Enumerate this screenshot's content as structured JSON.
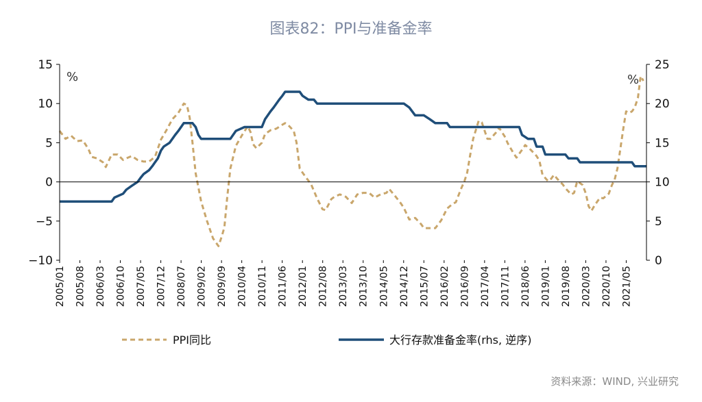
{
  "chart_data": {
    "type": "line",
    "title": "图表82：PPI与准备金率",
    "source": "资料来源：WIND, 兴业研究",
    "left_axis": {
      "unit": "%",
      "range": [
        -10,
        15
      ],
      "ticks": [
        "15",
        "10",
        "5",
        "0",
        "−5",
        "−10"
      ],
      "tick_values": [
        15,
        10,
        5,
        0,
        -5,
        -10
      ]
    },
    "right_axis": {
      "unit": "%",
      "range": [
        0,
        25
      ],
      "ticks": [
        "25",
        "20",
        "15",
        "10",
        "5",
        "0"
      ],
      "tick_values": [
        25,
        20,
        15,
        10,
        5,
        0
      ],
      "reversed": false
    },
    "x_ticks": [
      "2005/01",
      "2005/08",
      "2006/03",
      "2006/10",
      "2007/05",
      "2007/12",
      "2008/07",
      "2009/02",
      "2009/09",
      "2010/04",
      "2010/11",
      "2011/06",
      "2012/01",
      "2012/08",
      "2013/03",
      "2013/10",
      "2014/05",
      "2014/12",
      "2015/07",
      "2016/02",
      "2016/09",
      "2017/04",
      "2017/11",
      "2018/06",
      "2019/01",
      "2019/08",
      "2020/03",
      "2020/10",
      "2021/05"
    ],
    "x_range": [
      2005.0,
      2021.917
    ],
    "legend": [
      "PPI同比",
      "大行存款准备金率(rhs, 逆序)"
    ],
    "series": [
      {
        "name": "PPI同比",
        "axis": "left",
        "color": "#c9a66b",
        "style": "dashed",
        "points": [
          [
            2005.0,
            6.5
          ],
          [
            2005.17,
            5.5
          ],
          [
            2005.33,
            5.9
          ],
          [
            2005.5,
            5.2
          ],
          [
            2005.67,
            5.3
          ],
          [
            2005.83,
            4.2
          ],
          [
            2005.92,
            3.2
          ],
          [
            2006.08,
            3.0
          ],
          [
            2006.25,
            2.5
          ],
          [
            2006.33,
            1.9
          ],
          [
            2006.5,
            3.5
          ],
          [
            2006.67,
            3.5
          ],
          [
            2006.83,
            2.8
          ],
          [
            2006.92,
            3.0
          ],
          [
            2007.08,
            3.3
          ],
          [
            2007.25,
            2.8
          ],
          [
            2007.42,
            2.6
          ],
          [
            2007.58,
            2.6
          ],
          [
            2007.75,
            3.2
          ],
          [
            2007.92,
            5.4
          ],
          [
            2008.08,
            6.6
          ],
          [
            2008.25,
            8.0
          ],
          [
            2008.42,
            8.8
          ],
          [
            2008.58,
            10.0
          ],
          [
            2008.67,
            9.8
          ],
          [
            2008.75,
            8.2
          ],
          [
            2008.83,
            5.0
          ],
          [
            2008.92,
            1.1
          ],
          [
            2009.08,
            -2.5
          ],
          [
            2009.25,
            -5.0
          ],
          [
            2009.42,
            -7.2
          ],
          [
            2009.58,
            -8.2
          ],
          [
            2009.67,
            -7.0
          ],
          [
            2009.75,
            -5.8
          ],
          [
            2009.83,
            -2.0
          ],
          [
            2009.92,
            1.7
          ],
          [
            2010.08,
            4.6
          ],
          [
            2010.25,
            5.9
          ],
          [
            2010.42,
            7.1
          ],
          [
            2010.5,
            6.4
          ],
          [
            2010.58,
            4.8
          ],
          [
            2010.67,
            4.3
          ],
          [
            2010.83,
            5.0
          ],
          [
            2010.92,
            6.1
          ],
          [
            2011.08,
            6.6
          ],
          [
            2011.25,
            6.8
          ],
          [
            2011.42,
            7.3
          ],
          [
            2011.5,
            7.5
          ],
          [
            2011.58,
            7.3
          ],
          [
            2011.75,
            6.5
          ],
          [
            2011.83,
            5.0
          ],
          [
            2011.92,
            1.7
          ],
          [
            2012.08,
            0.7
          ],
          [
            2012.25,
            -0.3
          ],
          [
            2012.42,
            -2.1
          ],
          [
            2012.58,
            -3.5
          ],
          [
            2012.67,
            -3.6
          ],
          [
            2012.83,
            -2.2
          ],
          [
            2012.92,
            -1.9
          ],
          [
            2013.08,
            -1.6
          ],
          [
            2013.25,
            -1.9
          ],
          [
            2013.42,
            -2.7
          ],
          [
            2013.58,
            -1.6
          ],
          [
            2013.75,
            -1.4
          ],
          [
            2013.92,
            -1.4
          ],
          [
            2014.08,
            -2.0
          ],
          [
            2014.25,
            -1.6
          ],
          [
            2014.42,
            -1.4
          ],
          [
            2014.5,
            -0.9
          ],
          [
            2014.67,
            -1.8
          ],
          [
            2014.83,
            -2.7
          ],
          [
            2014.92,
            -3.3
          ],
          [
            2015.08,
            -4.8
          ],
          [
            2015.25,
            -4.6
          ],
          [
            2015.42,
            -5.4
          ],
          [
            2015.5,
            -5.9
          ],
          [
            2015.67,
            -5.9
          ],
          [
            2015.83,
            -5.9
          ],
          [
            2016.0,
            -4.9
          ],
          [
            2016.17,
            -3.4
          ],
          [
            2016.33,
            -2.8
          ],
          [
            2016.42,
            -2.6
          ],
          [
            2016.58,
            -0.8
          ],
          [
            2016.67,
            0.1
          ],
          [
            2016.75,
            1.2
          ],
          [
            2016.83,
            3.3
          ],
          [
            2016.92,
            5.5
          ],
          [
            2017.08,
            7.8
          ],
          [
            2017.17,
            7.6
          ],
          [
            2017.33,
            5.5
          ],
          [
            2017.42,
            5.5
          ],
          [
            2017.58,
            6.3
          ],
          [
            2017.67,
            6.9
          ],
          [
            2017.83,
            5.8
          ],
          [
            2017.92,
            4.9
          ],
          [
            2018.08,
            3.7
          ],
          [
            2018.17,
            3.1
          ],
          [
            2018.33,
            4.1
          ],
          [
            2018.42,
            4.7
          ],
          [
            2018.58,
            4.1
          ],
          [
            2018.75,
            3.3
          ],
          [
            2018.83,
            2.7
          ],
          [
            2018.92,
            0.9
          ],
          [
            2019.08,
            0.1
          ],
          [
            2019.17,
            0.4
          ],
          [
            2019.25,
            0.9
          ],
          [
            2019.42,
            0.0
          ],
          [
            2019.5,
            -0.3
          ],
          [
            2019.58,
            -0.8
          ],
          [
            2019.75,
            -1.6
          ],
          [
            2019.83,
            -1.4
          ],
          [
            2019.92,
            0.1
          ],
          [
            2020.08,
            -0.4
          ],
          [
            2020.17,
            -1.5
          ],
          [
            2020.25,
            -3.1
          ],
          [
            2020.33,
            -3.7
          ],
          [
            2020.42,
            -3.0
          ],
          [
            2020.58,
            -2.0
          ],
          [
            2020.67,
            -2.1
          ],
          [
            2020.83,
            -1.5
          ],
          [
            2020.92,
            -0.4
          ],
          [
            2021.0,
            0.3
          ],
          [
            2021.08,
            1.7
          ],
          [
            2021.17,
            4.4
          ],
          [
            2021.25,
            6.8
          ],
          [
            2021.33,
            9.0
          ],
          [
            2021.42,
            8.8
          ],
          [
            2021.5,
            9.0
          ],
          [
            2021.58,
            9.5
          ],
          [
            2021.67,
            10.7
          ],
          [
            2021.75,
            13.5
          ],
          [
            2021.83,
            12.9
          ]
        ]
      },
      {
        "name": "大行存款准备金率(rhs, 逆序)",
        "axis": "right",
        "color": "#1f4e79",
        "style": "solid",
        "points": [
          [
            2005.0,
            7.5
          ],
          [
            2006.5,
            7.5
          ],
          [
            2006.58,
            8.0
          ],
          [
            2006.83,
            8.5
          ],
          [
            2006.92,
            9.0
          ],
          [
            2007.08,
            9.5
          ],
          [
            2007.25,
            10.0
          ],
          [
            2007.33,
            10.5
          ],
          [
            2007.42,
            11.0
          ],
          [
            2007.58,
            11.5
          ],
          [
            2007.67,
            12.0
          ],
          [
            2007.75,
            12.5
          ],
          [
            2007.83,
            13.0
          ],
          [
            2007.92,
            14.0
          ],
          [
            2008.0,
            14.5
          ],
          [
            2008.17,
            15.0
          ],
          [
            2008.33,
            16.0
          ],
          [
            2008.42,
            16.5
          ],
          [
            2008.5,
            17.0
          ],
          [
            2008.58,
            17.5
          ],
          [
            2008.83,
            17.5
          ],
          [
            2008.92,
            17.0
          ],
          [
            2009.0,
            16.0
          ],
          [
            2009.08,
            15.5
          ],
          [
            2009.92,
            15.5
          ],
          [
            2010.0,
            16.0
          ],
          [
            2010.08,
            16.5
          ],
          [
            2010.33,
            17.0
          ],
          [
            2010.83,
            17.0
          ],
          [
            2010.92,
            18.0
          ],
          [
            2011.0,
            18.5
          ],
          [
            2011.08,
            19.0
          ],
          [
            2011.17,
            19.5
          ],
          [
            2011.25,
            20.0
          ],
          [
            2011.33,
            20.5
          ],
          [
            2011.42,
            21.0
          ],
          [
            2011.5,
            21.5
          ],
          [
            2011.92,
            21.5
          ],
          [
            2012.0,
            21.0
          ],
          [
            2012.17,
            20.5
          ],
          [
            2012.33,
            20.5
          ],
          [
            2012.42,
            20.0
          ],
          [
            2014.92,
            20.0
          ],
          [
            2015.08,
            19.5
          ],
          [
            2015.25,
            18.5
          ],
          [
            2015.5,
            18.5
          ],
          [
            2015.67,
            18.0
          ],
          [
            2015.83,
            17.5
          ],
          [
            2016.17,
            17.5
          ],
          [
            2016.25,
            17.0
          ],
          [
            2017.92,
            17.0
          ],
          [
            2018.25,
            17.0
          ],
          [
            2018.33,
            16.0
          ],
          [
            2018.5,
            15.5
          ],
          [
            2018.67,
            15.5
          ],
          [
            2018.75,
            14.5
          ],
          [
            2018.92,
            14.5
          ],
          [
            2019.0,
            13.5
          ],
          [
            2019.58,
            13.5
          ],
          [
            2019.67,
            13.0
          ],
          [
            2019.92,
            13.0
          ],
          [
            2020.0,
            12.5
          ],
          [
            2021.5,
            12.5
          ],
          [
            2021.58,
            12.0
          ],
          [
            2021.92,
            12.0
          ]
        ]
      }
    ]
  }
}
